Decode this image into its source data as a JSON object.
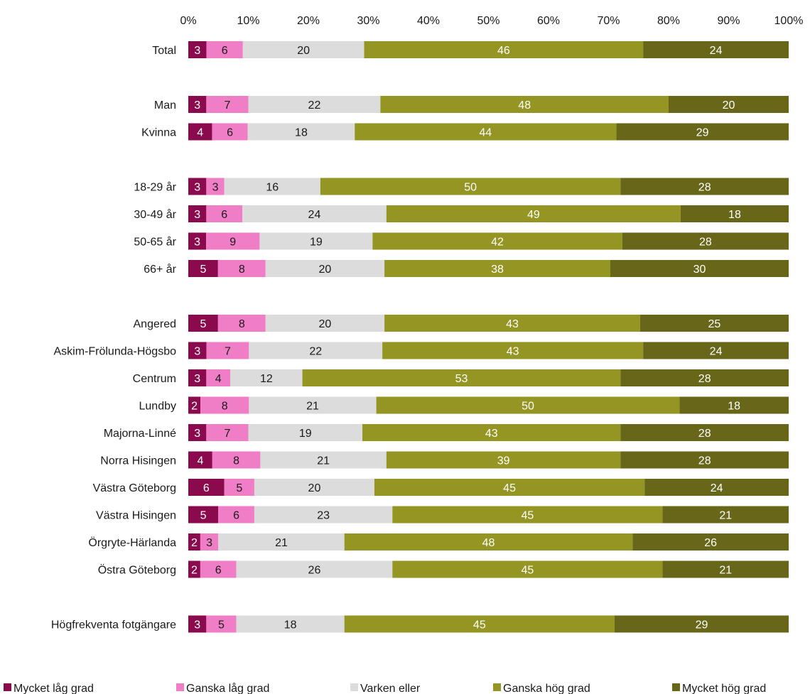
{
  "chart_data": {
    "type": "bar",
    "orientation": "horizontal",
    "stacked": true,
    "percent": true,
    "xlim": [
      0,
      100
    ],
    "xticks": [
      "0%",
      "10%",
      "20%",
      "30%",
      "40%",
      "50%",
      "60%",
      "70%",
      "80%",
      "90%",
      "100%"
    ],
    "axis_position": "top",
    "grid": false,
    "legend_position": "bottom",
    "categories": [
      "Total",
      "Man",
      "Kvinna",
      "18-29 år",
      "30-49 år",
      "50-65 år",
      "66+ år",
      "Angered",
      "Askim-Frölunda-Högsbo",
      "Centrum",
      "Lundby",
      "Majorna-Linné",
      "Norra Hisingen",
      "Västra Göteborg",
      "Västra Hisingen",
      "Örgryte-Härlanda",
      "Östra Göteborg",
      "Högfrekventa fotgängare"
    ],
    "groups": [
      [
        0
      ],
      [
        1,
        2
      ],
      [
        3,
        4,
        5,
        6
      ],
      [
        7,
        8,
        9,
        10,
        11,
        12,
        13,
        14,
        15,
        16
      ],
      [
        17
      ]
    ],
    "series": [
      {
        "name": "Mycket låg grad",
        "color": "#8b0a4e",
        "label_color": "#ffffff",
        "values": [
          3,
          3,
          4,
          3,
          3,
          3,
          5,
          5,
          3,
          3,
          2,
          3,
          4,
          6,
          5,
          2,
          2,
          3
        ]
      },
      {
        "name": "Ganska låg grad",
        "color": "#f07ec6",
        "label_color": "#1a1a1a",
        "values": [
          6,
          7,
          6,
          3,
          6,
          9,
          8,
          8,
          7,
          4,
          8,
          7,
          8,
          5,
          6,
          3,
          6,
          5
        ]
      },
      {
        "name": "Varken eller",
        "color": "#dcdcdc",
        "label_color": "#1a1a1a",
        "values": [
          20,
          22,
          18,
          16,
          24,
          19,
          20,
          20,
          22,
          12,
          21,
          19,
          21,
          20,
          23,
          21,
          26,
          18
        ]
      },
      {
        "name": "Ganska hög grad",
        "color": "#949522",
        "label_color": "#ffffff",
        "values": [
          46,
          48,
          44,
          50,
          49,
          42,
          38,
          43,
          43,
          53,
          50,
          43,
          39,
          45,
          45,
          48,
          45,
          45
        ]
      },
      {
        "name": "Mycket hög grad",
        "color": "#676619",
        "label_color": "#ffffff",
        "values": [
          24,
          20,
          29,
          28,
          18,
          28,
          30,
          25,
          24,
          28,
          18,
          28,
          28,
          24,
          21,
          26,
          21,
          29
        ]
      }
    ]
  }
}
